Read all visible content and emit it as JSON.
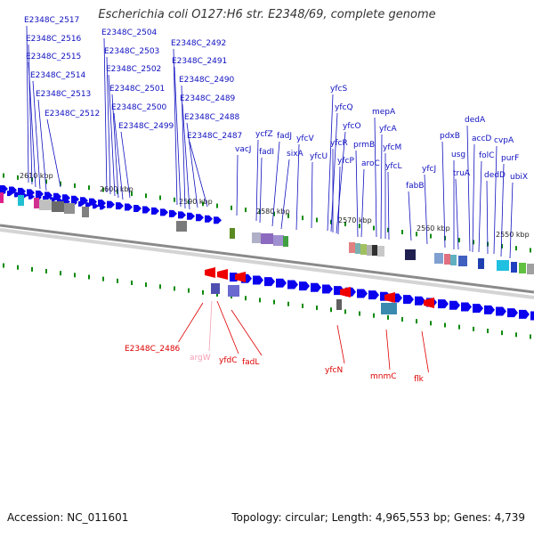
{
  "title": "Escherichia coli O127:H6 str. E2348/69, complete genome",
  "footer": {
    "accession": "Accession: NC_011601",
    "summary": "Topology: circular; Length: 4,965,553 bp; Genes: 4,739"
  },
  "colors": {
    "cds_arrow": "#0a00ee",
    "label_blue": "#1010c0",
    "label_red": "#dd0000",
    "label_pink": "#f4a0b4",
    "tick_green": "#0a8a0a",
    "backbone": "#8a8a8a"
  },
  "scale_labels": [
    "2610 kbp",
    "2600 kbp",
    "2590 kbp",
    "2580 kbp",
    "2570 kbp",
    "2560 kbp",
    "2550 kbp"
  ],
  "upper_gene_labels": [
    "E2348C_2517",
    "E2348C_2516",
    "E2348C_2515",
    "E2348C_2514",
    "E2348C_2513",
    "E2348C_2512",
    "E2348C_2504",
    "E2348C_2503",
    "E2348C_2502",
    "E2348C_2501",
    "E2348C_2500",
    "E2348C_2499",
    "E2348C_2492",
    "E2348C_2491",
    "E2348C_2490",
    "E2348C_2489",
    "E2348C_2488",
    "E2348C_2487",
    "vacJ",
    "ycfZ",
    "fadI",
    "fadJ",
    "sixA",
    "yfcV",
    "yfcU",
    "yfcS",
    "yfcQ",
    "yfcO",
    "yfcR",
    "yfcP",
    "prmB",
    "aroC",
    "mepA",
    "yfcA",
    "yfcM",
    "yfcL",
    "fabB",
    "yfcJ",
    "pdxB",
    "usg",
    "truA",
    "dedA",
    "accD",
    "folC",
    "dedD",
    "cvpA",
    "purF",
    "ubiX"
  ],
  "lower_gene_labels": [
    "E2348C_2486",
    "argW",
    "yfdC",
    "fadL",
    "yfcN",
    "mnmC",
    "flk"
  ]
}
